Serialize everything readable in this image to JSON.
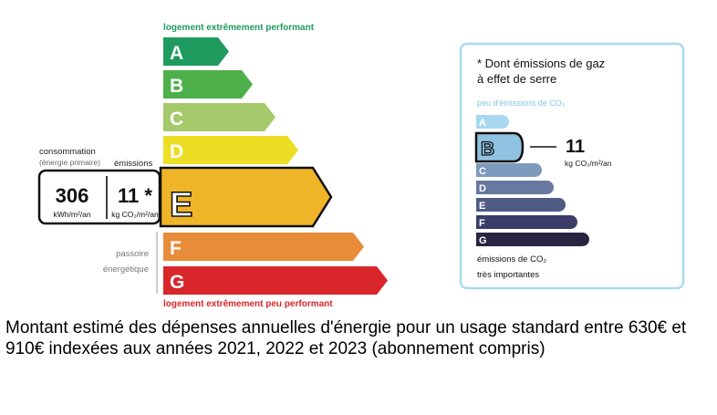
{
  "dpe": {
    "top_caption": "logement extrêmement performant",
    "bottom_caption": "logement extrêmement peu performant",
    "classes": [
      "A",
      "B",
      "C",
      "D",
      "E",
      "F",
      "G"
    ],
    "colors": [
      "#1f9b5f",
      "#4db04a",
      "#a5c96b",
      "#ecdf23",
      "#f0b429",
      "#e88c3a",
      "#d8262b"
    ],
    "current_class": "E",
    "consumption_label": "consommation",
    "consumption_sublabel": "(énergie primaire)",
    "emissions_label": "émissions",
    "consumption_value": "306",
    "consumption_unit": "kWh/m²/an",
    "emissions_value": "11 *",
    "emissions_unit": "kg CO₂/m²/an",
    "passoire_line1": "passoire",
    "passoire_line2": "énergétique"
  },
  "ges": {
    "title_line1": "* Dont émissions de gaz",
    "title_line2": "à effet de serre",
    "top_caption": "peu d'émissions de CO₂",
    "bottom_caption_line1": "émissions de CO₂",
    "bottom_caption_line2": "très importantes",
    "classes": [
      "A",
      "B",
      "C",
      "D",
      "E",
      "F",
      "G"
    ],
    "colors": [
      "#a7d8ef",
      "#8fc3e1",
      "#7d9bbd",
      "#67799f",
      "#4f5b83",
      "#3b3d68",
      "#2a2443"
    ],
    "current_class": "B",
    "value": "11",
    "unit": "kg CO₂/m²/an"
  },
  "footer": {
    "text": "Montant estimé des dépenses annuelles d'énergie pour un usage standard entre 630€ et 910€ indexées aux années 2021, 2022 et 2023 (abonnement compris)"
  }
}
